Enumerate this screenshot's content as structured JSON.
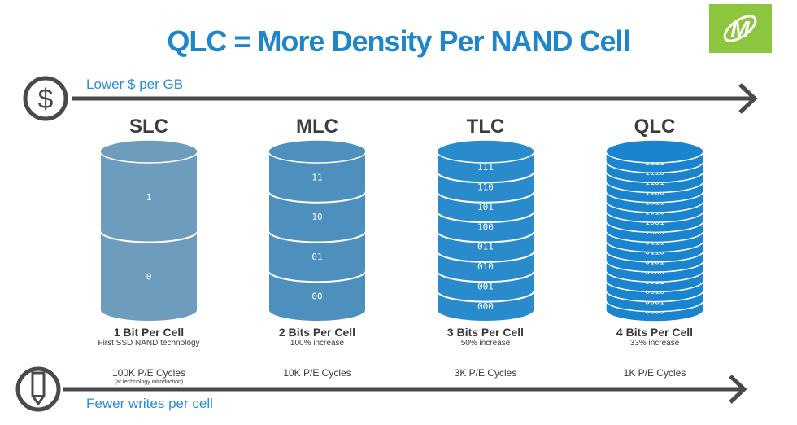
{
  "title": "QLC = More Density Per NAND Cell",
  "top_axis": {
    "label": "Lower $ per GB",
    "icon": "dollar-icon"
  },
  "bottom_axis": {
    "label": "Fewer writes per cell",
    "icon": "pencil-icon"
  },
  "logo": {
    "icon": "micron-logo",
    "color": "#8cc63f"
  },
  "columns": [
    {
      "name": "SLC",
      "bits": "1 Bit Per Cell",
      "sub": "First SSD NAND technology",
      "pe": "100K P/E Cycles",
      "note": "(at technology introduction)",
      "color": "#6e9cbd",
      "levels": [
        "1",
        "0"
      ]
    },
    {
      "name": "MLC",
      "bits": "2 Bits Per Cell",
      "sub": "100% increase",
      "pe": "10K P/E Cycles",
      "color": "#4d8fbd",
      "levels": [
        "11",
        "10",
        "01",
        "00"
      ]
    },
    {
      "name": "TLC",
      "bits": "3 Bits Per Cell",
      "sub": "50% increase",
      "pe": "3K P/E Cycles",
      "color": "#2a8bcc",
      "levels": [
        "111",
        "110",
        "101",
        "100",
        "011",
        "010",
        "001",
        "000"
      ]
    },
    {
      "name": "QLC",
      "bits": "4 Bits Per Cell",
      "sub": "33% increase",
      "pe": "1K P/E Cycles",
      "color": "#1a84cf",
      "levels": [
        "1111",
        "1110",
        "1101",
        "1100",
        "1011",
        "1010",
        "1001",
        "1000",
        "0111",
        "0110",
        "0101",
        "0100",
        "0011",
        "0010",
        "0001",
        "0000"
      ]
    }
  ]
}
